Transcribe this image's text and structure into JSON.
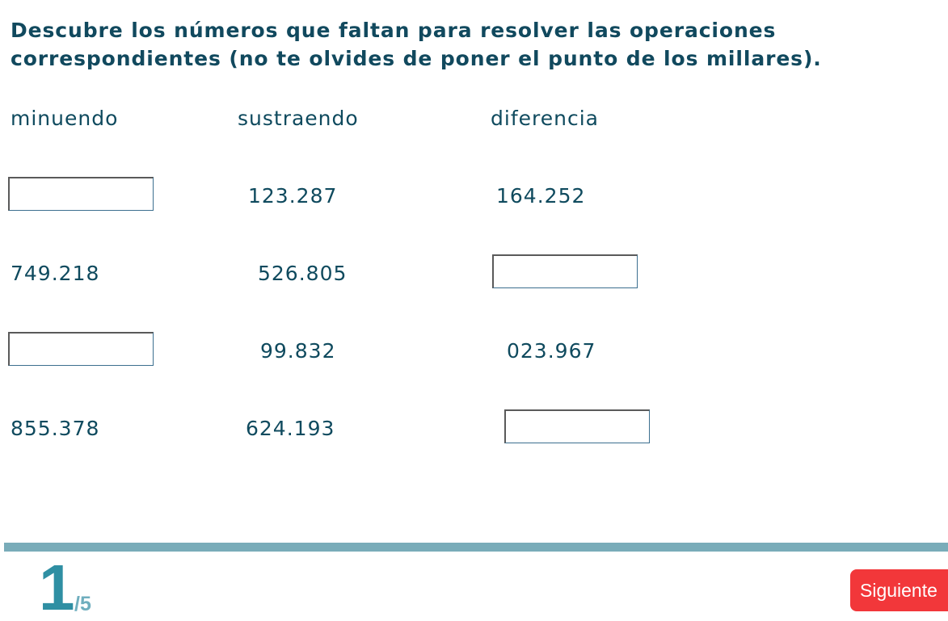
{
  "instructions": {
    "line1": "Descubre los números que faltan para resolver las operaciones",
    "line2": "correspondientes (no te olvides de poner el punto de los millares)."
  },
  "headers": {
    "minuend": "minuendo",
    "subtrahend": "sustraendo",
    "difference": "diferencia"
  },
  "rows": [
    {
      "minuend": "",
      "subtrahend": "123.287",
      "difference": "164.252"
    },
    {
      "minuend": "749.218",
      "subtrahend": "526.805",
      "difference": ""
    },
    {
      "minuend": "",
      "subtrahend": "99.832",
      "difference": "023.967"
    },
    {
      "minuend": "855.378",
      "subtrahend": "624.193",
      "difference": ""
    }
  ],
  "pagination": {
    "current": "1",
    "total": "/5"
  },
  "next_button": {
    "label": "Siguiente"
  },
  "colors": {
    "text": "#0f4a5e",
    "divider": "#79acb9",
    "page_number": "#2f8fa3",
    "next_button": "#f2373a"
  }
}
